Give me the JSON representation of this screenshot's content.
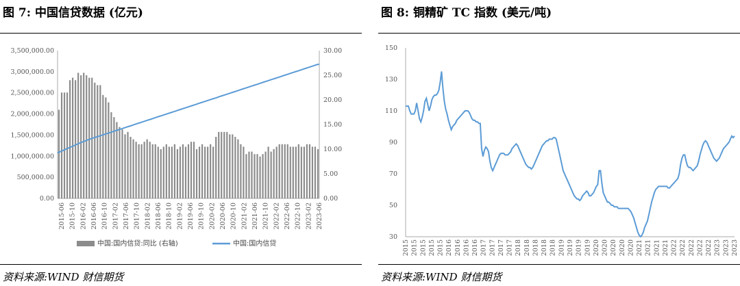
{
  "left": {
    "title": "图 7:  中国信贷数据 (亿元)",
    "source": "资料来源:WIND 财信期货",
    "legend": [
      "中国:国内信贷:同比 (右轴)",
      "中国:国内信贷"
    ],
    "colors": {
      "bars": "#8c8c8c",
      "line": "#5b9bd5"
    },
    "chart_data": {
      "type": "bar+line",
      "x_ticks": [
        "2015-06",
        "2015-10",
        "2016-02",
        "2016-06",
        "2016-10",
        "2017-02",
        "2017-06",
        "2017-10",
        "2018-02",
        "2018-06",
        "2018-10",
        "2019-02",
        "2019-06",
        "2019-10",
        "2020-02",
        "2020-06",
        "2020-10",
        "2021-02",
        "2021-06",
        "2021-10",
        "2022-02",
        "2022-06",
        "2022-10",
        "2023-02",
        "2023-06"
      ],
      "y_left_ticks": [
        "0.00",
        "500,000.00",
        "1,000,000.00",
        "1,500,000.00",
        "2,000,000.00",
        "2,500,000.00",
        "3,000,000.00",
        "3,500,000.00"
      ],
      "y_right_ticks": [
        "0.00",
        "5.00",
        "10.00",
        "15.00",
        "20.00",
        "25.00",
        "30.00"
      ],
      "ylim_left": [
        0,
        3500000
      ],
      "ylim_right": [
        0,
        30
      ],
      "series": [
        {
          "name": "中国:国内信贷:同比 (右轴)",
          "axis": "right",
          "type": "bar",
          "values": [
            18.0,
            21.5,
            21.5,
            21.5,
            24.0,
            24.5,
            24.0,
            25.5,
            25.0,
            25.5,
            25.0,
            24.5,
            24.5,
            23.5,
            23.0,
            23.0,
            21.0,
            20.5,
            19.5,
            17.5,
            16.5,
            15.5,
            14.5,
            14.0,
            13.0,
            13.5,
            12.5,
            12.0,
            11.5,
            11.0,
            11.0,
            11.5,
            12.0,
            11.5,
            11.0,
            11.0,
            10.5,
            10.0,
            10.5,
            11.0,
            10.5,
            10.5,
            11.0,
            10.0,
            10.5,
            11.0,
            10.5,
            11.0,
            11.5,
            11.5,
            10.0,
            10.5,
            11.0,
            10.5,
            10.5,
            11.0,
            10.5,
            12.5,
            13.5,
            13.5,
            13.5,
            13.5,
            13.0,
            13.0,
            12.5,
            12.0,
            11.0,
            10.5,
            9.0,
            9.5,
            9.5,
            9.0,
            9.0,
            8.5,
            9.0,
            9.5,
            10.5,
            9.5,
            10.0,
            10.5,
            11.0,
            11.0,
            11.0,
            11.0,
            10.5,
            10.5,
            10.5,
            11.0,
            10.5,
            10.5,
            11.0,
            11.0,
            10.5,
            10.5,
            10.0
          ]
        },
        {
          "name": "中国:国内信贷",
          "axis": "left",
          "type": "line",
          "values": [
            1080000,
            1104000,
            1128000,
            1152000,
            1176000,
            1200000,
            1224000,
            1248000,
            1272000,
            1296000,
            1320000,
            1341000,
            1362000,
            1383000,
            1404000,
            1425000,
            1440000,
            1458000,
            1476000,
            1494000,
            1512000,
            1530000,
            1548000,
            1566000,
            1584000,
            1602000,
            1620000,
            1638000,
            1656000,
            1674000,
            1692000,
            1710000,
            1728000,
            1746000,
            1764000,
            1782000,
            1800000,
            1818000,
            1836000,
            1854000,
            1872000,
            1890000,
            1908000,
            1926000,
            1944000,
            1962000,
            1980000,
            1998000,
            2016000,
            2034000,
            2052000,
            2070000,
            2088000,
            2106000,
            2124000,
            2142000,
            2160000,
            2178000,
            2196000,
            2214000,
            2232000,
            2250000,
            2268000,
            2286000,
            2304000,
            2322000,
            2340000,
            2358000,
            2376000,
            2394000,
            2412000,
            2430000,
            2448000,
            2466000,
            2484000,
            2502000,
            2520000,
            2538000,
            2556000,
            2574000,
            2592000,
            2610000,
            2628000,
            2646000,
            2664000,
            2682000,
            2700000,
            2718000,
            2736000,
            2754000,
            2772000,
            2790000,
            2808000,
            2826000,
            2844000,
            2862000,
            2880000,
            2898000,
            2916000,
            2934000,
            2952000,
            2970000,
            2988000,
            3006000,
            3024000,
            3042000,
            3060000,
            3078000,
            3096000,
            3114000,
            3132000,
            3150000,
            3168000,
            3180000
          ]
        }
      ]
    }
  },
  "right": {
    "title": "图 8:  铜精矿 TC 指数 (美元/吨)",
    "source": "资料来源:WIND 财信期货",
    "colors": {
      "line": "#5b9bd5"
    },
    "chart_data": {
      "type": "line",
      "ylim": [
        30,
        150
      ],
      "y_ticks": [
        "30",
        "50",
        "70",
        "90",
        "110",
        "130",
        "150"
      ],
      "x_ticks": [
        "2015",
        "2015",
        "2015",
        "2015",
        "2015",
        "2016",
        "2016",
        "2016",
        "2016",
        "2017",
        "2017",
        "2017",
        "2017",
        "2018",
        "2018",
        "2018",
        "2018",
        "2018",
        "2019",
        "2019",
        "2019",
        "2019",
        "2020",
        "2020",
        "2020",
        "2020",
        "2020",
        "2021",
        "2021",
        "2021",
        "2021",
        "2022",
        "2022",
        "2022",
        "2022",
        "2022",
        "2023",
        "2023",
        "2023"
      ],
      "series": [
        {
          "values": [
            113,
            113,
            113,
            110,
            108,
            108,
            108,
            110,
            115,
            110,
            105,
            103,
            106,
            110,
            116,
            118,
            114,
            110,
            113,
            117,
            119,
            120,
            120,
            121,
            123,
            128,
            135,
            124,
            116,
            111,
            108,
            104,
            101,
            98,
            100,
            101,
            102,
            104,
            105,
            106,
            107,
            108,
            109,
            110,
            110,
            110,
            109,
            107,
            105,
            104,
            104,
            103,
            103,
            102,
            102,
            86,
            81,
            85,
            87,
            86,
            84,
            78,
            74,
            72,
            74,
            76,
            78,
            80,
            82,
            83,
            83,
            83,
            82,
            82,
            82,
            83,
            84,
            86,
            87,
            88,
            89,
            88,
            86,
            84,
            82,
            80,
            78,
            76,
            75,
            74,
            74,
            73,
            74,
            76,
            78,
            80,
            82,
            84,
            86,
            88,
            89,
            90,
            91,
            91,
            92,
            92,
            92,
            93,
            93,
            92,
            88,
            84,
            80,
            76,
            72,
            70,
            68,
            66,
            64,
            62,
            60,
            58,
            56,
            55,
            54,
            54,
            53,
            54,
            56,
            57,
            58,
            59,
            58,
            56,
            56,
            57,
            58,
            60,
            62,
            63,
            72,
            72,
            64,
            58,
            56,
            54,
            52,
            52,
            51,
            50,
            50,
            49,
            49,
            49,
            48,
            48,
            48,
            48,
            48,
            48,
            48,
            48,
            47,
            46,
            44,
            42,
            39,
            36,
            33,
            31,
            30,
            31,
            33,
            36,
            38,
            40,
            44,
            48,
            52,
            55,
            58,
            60,
            61,
            62,
            62,
            62,
            62,
            62,
            62,
            62,
            61,
            61,
            62,
            63,
            64,
            65,
            66,
            67,
            70,
            76,
            80,
            82,
            82,
            78,
            75,
            74,
            74,
            73,
            72,
            73,
            74,
            75,
            78,
            82,
            85,
            88,
            90,
            91,
            90,
            88,
            86,
            84,
            82,
            80,
            79,
            78,
            79,
            80,
            82,
            84,
            86,
            87,
            88,
            89,
            90,
            92,
            94,
            93,
            94
          ]
        }
      ]
    }
  }
}
